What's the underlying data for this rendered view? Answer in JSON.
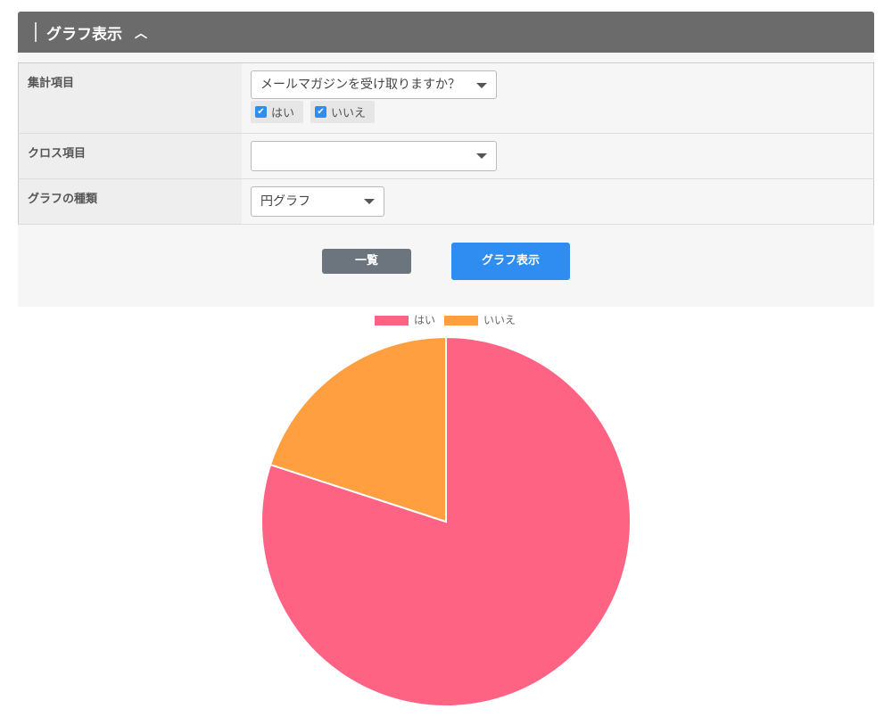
{
  "header": {
    "title": "グラフ表示",
    "toggle_icon": "chevron-up-icon"
  },
  "form": {
    "rows": [
      {
        "label": "集計項目",
        "select_value": "メールマガジンを受け取りますか？",
        "options": [
          {
            "label": "はい",
            "checked": true
          },
          {
            "label": "いいえ",
            "checked": true
          }
        ]
      },
      {
        "label": "クロス項目",
        "select_value": ""
      },
      {
        "label": "グラフの種類",
        "select_value": "円グラフ"
      }
    ],
    "list_button": "一覧",
    "graph_button": "グラフ表示"
  },
  "colors": {
    "list_button": "#6c757d",
    "graph_button": "#2f8cf0"
  },
  "chart_data": {
    "type": "pie",
    "categories": [
      "はい",
      "いいえ"
    ],
    "values": [
      80,
      20
    ],
    "colors": [
      "#ff6384",
      "#ff9f40"
    ],
    "legend": "top"
  }
}
